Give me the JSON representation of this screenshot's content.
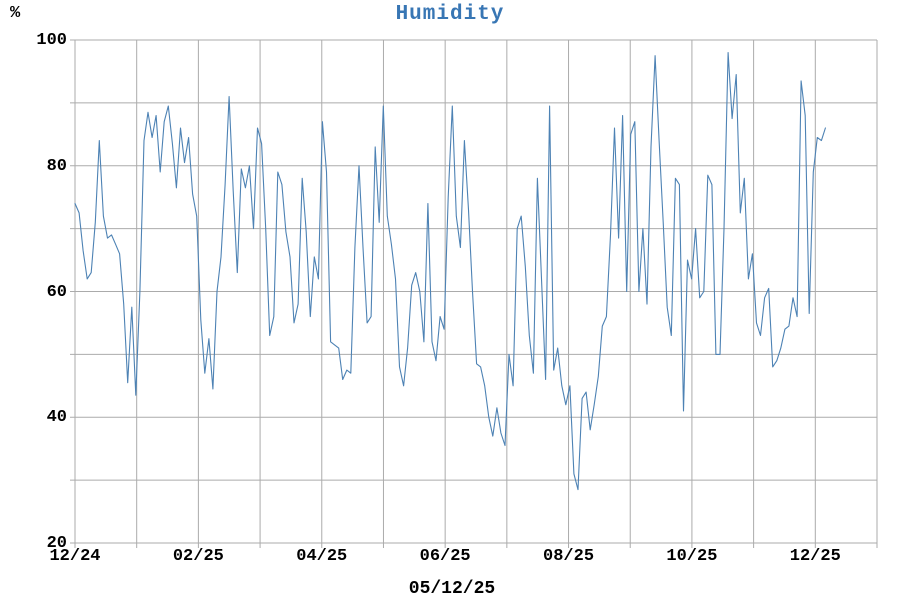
{
  "title": "Humidity",
  "y_axis": {
    "unit_label": "%",
    "tick_values": [
      100,
      80,
      60,
      40,
      20
    ],
    "min": 20,
    "max": 100,
    "minor_step": 10
  },
  "x_axis": {
    "ticks": [
      {
        "label": "12/24",
        "month": 0
      },
      {
        "label": "02/25",
        "month": 2
      },
      {
        "label": "04/25",
        "month": 4
      },
      {
        "label": "06/25",
        "month": 6
      },
      {
        "label": "08/25",
        "month": 8
      },
      {
        "label": "10/25",
        "month": 10
      },
      {
        "label": "12/25",
        "month": 12
      }
    ],
    "months_shown": 13,
    "footer_label": "05/12/25"
  },
  "colors": {
    "line": "#4d82b4",
    "title": "#3876b4",
    "grid": "#ababab",
    "text": "#000000",
    "background": "#ffffff"
  },
  "chart_data": {
    "type": "line",
    "title": "Humidity",
    "ylabel": "%",
    "xlabel": "05/12/25",
    "ylim": [
      20,
      100
    ],
    "grid": true,
    "legend": "none",
    "x_tick_labels": [
      "12/24",
      "02/25",
      "04/25",
      "06/25",
      "08/25",
      "10/25",
      "12/25"
    ],
    "x_start": "12/24",
    "x_step_days": 2,
    "series": [
      {
        "name": "Humidity %",
        "values": [
          74,
          72.5,
          66.5,
          62,
          63,
          71,
          84,
          72,
          68.5,
          69,
          67.5,
          66,
          58,
          45.5,
          57.5,
          43.5,
          60,
          84,
          88.5,
          84.5,
          88,
          79,
          87,
          89.5,
          83.5,
          76.5,
          86,
          80.5,
          84.5,
          75.5,
          72,
          55.5,
          47,
          52.5,
          44.5,
          60,
          65.5,
          77,
          91,
          76,
          63,
          79.5,
          76.5,
          80,
          70,
          86,
          83.5,
          70,
          53,
          56,
          79,
          77,
          69.5,
          65.5,
          55,
          58,
          78,
          69.5,
          56,
          65.5,
          62,
          87,
          79,
          52,
          51.5,
          51,
          46,
          47.5,
          47,
          67,
          80,
          67,
          55,
          56,
          83,
          71,
          89.5,
          72,
          67.5,
          62,
          48,
          45,
          51,
          61,
          63,
          60,
          52,
          74,
          52,
          49,
          56,
          54,
          75,
          89.5,
          72,
          67,
          84,
          73,
          60,
          48.5,
          48,
          45,
          40,
          37,
          41.5,
          37.5,
          35.5,
          50,
          45,
          70,
          72,
          64,
          53,
          47,
          78,
          62,
          46,
          89.5,
          47.5,
          51,
          45,
          42,
          45,
          31,
          28.5,
          43,
          44,
          38,
          42,
          46.5,
          54.5,
          56,
          69,
          86,
          68.5,
          88,
          60,
          85,
          87,
          60,
          70,
          58,
          83,
          97.5,
          84,
          71,
          57.5,
          53,
          78,
          77,
          41,
          65,
          62,
          70,
          59,
          60,
          78.5,
          77,
          50,
          50,
          70,
          98,
          87.5,
          94.5,
          72.5,
          78,
          62,
          66,
          55,
          53,
          59,
          60.5,
          48,
          49,
          51,
          54,
          54.5,
          59,
          56,
          93.5,
          88,
          56.5,
          79,
          84.5,
          84,
          86
        ]
      }
    ]
  }
}
